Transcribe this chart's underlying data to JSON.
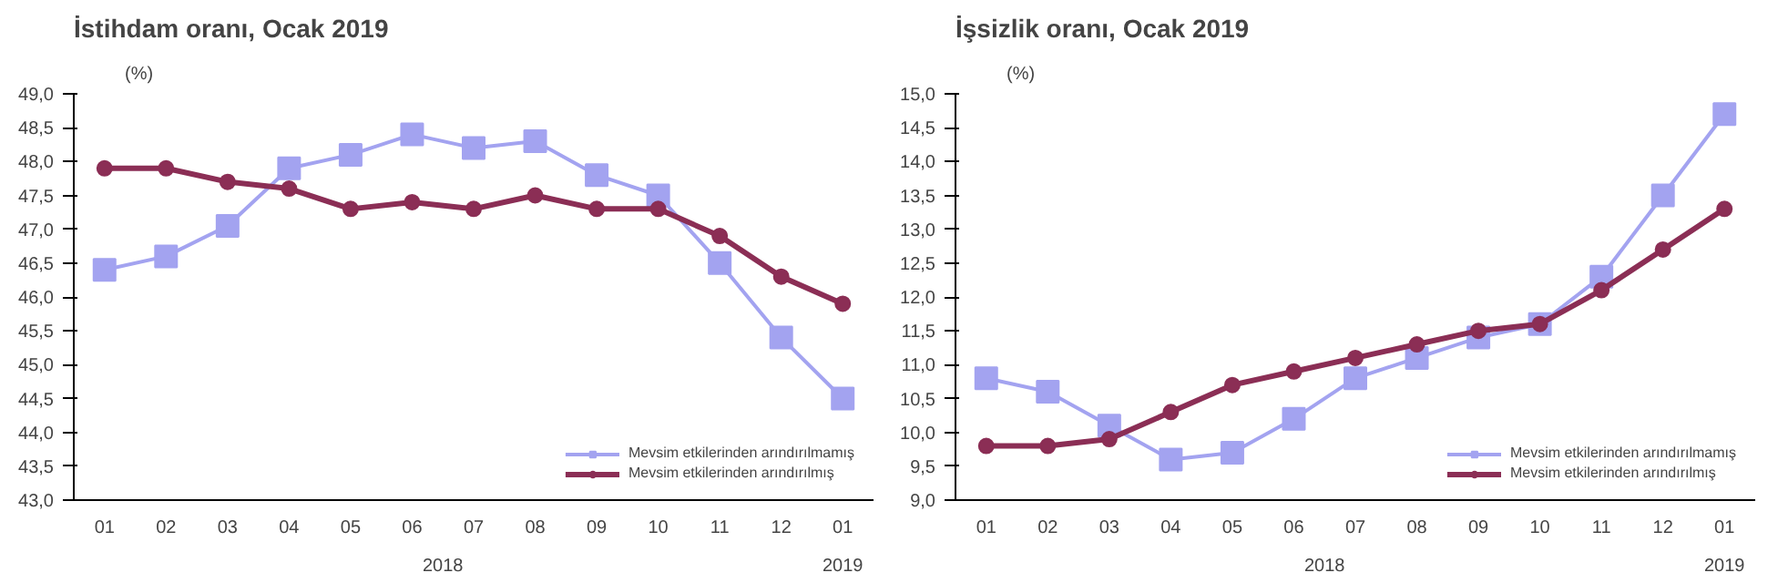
{
  "chart_data": [
    {
      "type": "line",
      "title": "İstihdam oranı, Ocak 2019",
      "ylabel": "(%)",
      "categories": [
        "01",
        "02",
        "03",
        "04",
        "05",
        "06",
        "07",
        "08",
        "09",
        "10",
        "11",
        "12",
        "01"
      ],
      "annotations": [
        "2018",
        "2019"
      ],
      "series": [
        {
          "name": "Mevsim etkilerinden arındırılmamış",
          "color": "#a3a3f0",
          "marker": "square",
          "values": [
            46.4,
            46.6,
            47.05,
            47.9,
            48.1,
            48.4,
            48.2,
            48.3,
            47.8,
            47.5,
            46.5,
            45.4,
            44.5
          ]
        },
        {
          "name": "Mevsim etkilerinden arındırılmış",
          "color": "#8b2e55",
          "marker": "circle",
          "values": [
            47.9,
            47.9,
            47.7,
            47.6,
            47.3,
            47.4,
            47.3,
            47.5,
            47.3,
            47.3,
            46.9,
            46.3,
            45.9
          ]
        }
      ],
      "ylim": [
        43,
        49
      ],
      "yticks": [
        {
          "value": 43,
          "label": "43,0"
        },
        {
          "value": 43.5,
          "label": "43,5"
        },
        {
          "value": 44,
          "label": "44,0"
        },
        {
          "value": 44.5,
          "label": "44,5"
        },
        {
          "value": 45,
          "label": "45,0"
        },
        {
          "value": 45.5,
          "label": "45,5"
        },
        {
          "value": 46,
          "label": "46,0"
        },
        {
          "value": 46.5,
          "label": "46,5"
        },
        {
          "value": 47,
          "label": "47,0"
        },
        {
          "value": 47.5,
          "label": "47,5"
        },
        {
          "value": 48,
          "label": "48,0"
        },
        {
          "value": 48.5,
          "label": "48,5"
        },
        {
          "value": 49,
          "label": "49,0"
        }
      ],
      "grid": false,
      "legend": "bottom right",
      "line_style": "solid"
    },
    {
      "type": "line",
      "title": "İşsizlik oranı, Ocak 2019",
      "ylabel": "(%)",
      "categories": [
        "01",
        "02",
        "03",
        "04",
        "05",
        "06",
        "07",
        "08",
        "09",
        "10",
        "11",
        "12",
        "01"
      ],
      "annotations": [
        "2018",
        "2019"
      ],
      "series": [
        {
          "name": "Mevsim etkilerinden arındırılmamış",
          "color": "#a3a3f0",
          "marker": "square",
          "values": [
            10.8,
            10.6,
            10.1,
            9.6,
            9.7,
            10.2,
            10.8,
            11.1,
            11.4,
            11.6,
            12.3,
            13.5,
            14.7
          ]
        },
        {
          "name": "Mevsim etkilerinden arındırılmış",
          "color": "#8b2e55",
          "marker": "circle",
          "values": [
            9.8,
            9.8,
            9.9,
            10.3,
            10.7,
            10.9,
            11.1,
            11.3,
            11.5,
            11.6,
            12.1,
            12.7,
            13.3
          ]
        }
      ],
      "ylim": [
        9,
        15
      ],
      "yticks": [
        {
          "value": 9,
          "label": "9,0"
        },
        {
          "value": 9.5,
          "label": "9,5"
        },
        {
          "value": 10,
          "label": "10,0"
        },
        {
          "value": 10.5,
          "label": "10,5"
        },
        {
          "value": 11,
          "label": "11,0"
        },
        {
          "value": 11.5,
          "label": "11,5"
        },
        {
          "value": 12,
          "label": "12,0"
        },
        {
          "value": 12.5,
          "label": "12,5"
        },
        {
          "value": 13,
          "label": "13,0"
        },
        {
          "value": 13.5,
          "label": "13,5"
        },
        {
          "value": 14,
          "label": "14,0"
        },
        {
          "value": 14.5,
          "label": "14,5"
        },
        {
          "value": 15,
          "label": "15,0"
        }
      ],
      "grid": false,
      "legend": "bottom right",
      "line_style": "solid"
    }
  ]
}
